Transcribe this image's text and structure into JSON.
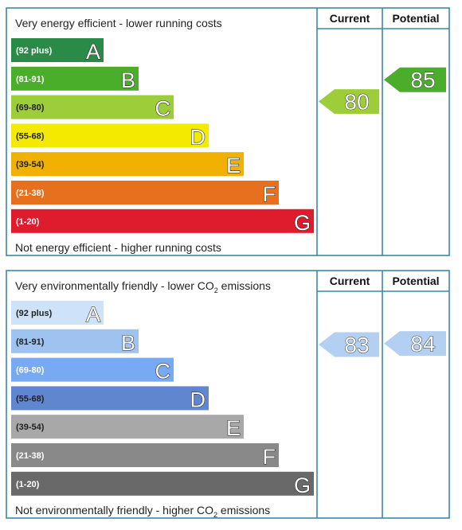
{
  "chart_data": [
    {
      "type": "bar",
      "name": "energy-efficiency",
      "top_caption": "Very energy efficient - lower running costs",
      "bottom_caption": "Not energy efficient - higher running costs",
      "headers": {
        "current": "Current",
        "potential": "Potential"
      },
      "bands": [
        {
          "range": "(92 plus)",
          "letter": "A",
          "color": "#2a8a47",
          "text_color": "#ffffff"
        },
        {
          "range": "(81-91)",
          "letter": "B",
          "color": "#4bae2a",
          "text_color": "#ffffff"
        },
        {
          "range": "(69-80)",
          "letter": "C",
          "color": "#9dcd39",
          "text_color": "#222222"
        },
        {
          "range": "(55-68)",
          "letter": "D",
          "color": "#f3ea00",
          "text_color": "#222222"
        },
        {
          "range": "(39-54)",
          "letter": "E",
          "color": "#f0b100",
          "text_color": "#222222"
        },
        {
          "range": "(21-38)",
          "letter": "F",
          "color": "#e7701f",
          "text_color": "#ffffff"
        },
        {
          "range": "(1-20)",
          "letter": "G",
          "color": "#df1c2e",
          "text_color": "#ffffff"
        }
      ],
      "current": {
        "value": 80,
        "label": "80",
        "color": "#9dcd39"
      },
      "potential": {
        "value": 85,
        "label": "85",
        "color": "#4bae2a"
      }
    },
    {
      "type": "bar",
      "name": "environmental-impact",
      "top_caption": "Very environmentally friendly - lower CO",
      "top_caption_sub": "2",
      "top_caption_tail": " emissions",
      "bottom_caption": "Not environmentally friendly - higher CO",
      "bottom_caption_sub": "2",
      "bottom_caption_tail": " emissions",
      "headers": {
        "current": "Current",
        "potential": "Potential"
      },
      "bands": [
        {
          "range": "(92 plus)",
          "letter": "A",
          "color": "#cfe3f8",
          "text_color": "#222222"
        },
        {
          "range": "(81-91)",
          "letter": "B",
          "color": "#9ec3f0",
          "text_color": "#222222"
        },
        {
          "range": "(69-80)",
          "letter": "C",
          "color": "#78a9f3",
          "text_color": "#ffffff"
        },
        {
          "range": "(55-68)",
          "letter": "D",
          "color": "#5f86cf",
          "text_color": "#222222"
        },
        {
          "range": "(39-54)",
          "letter": "E",
          "color": "#a8a8a8",
          "text_color": "#222222"
        },
        {
          "range": "(21-38)",
          "letter": "F",
          "color": "#898989",
          "text_color": "#ffffff"
        },
        {
          "range": "(1-20)",
          "letter": "G",
          "color": "#696969",
          "text_color": "#ffffff"
        }
      ],
      "current": {
        "value": 83,
        "label": "83",
        "color": "#b3d0f3"
      },
      "potential": {
        "value": 84,
        "label": "84",
        "color": "#b3d0f3"
      }
    }
  ]
}
